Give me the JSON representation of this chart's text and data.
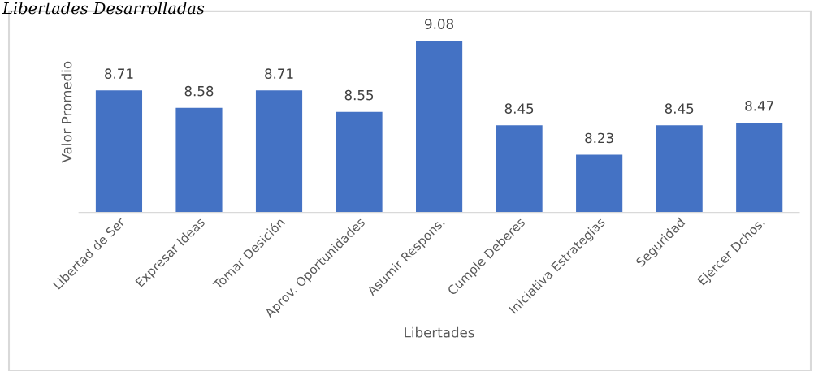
{
  "chart_data": {
    "type": "bar",
    "title": "Libertades Desarrolladas",
    "xlabel": "Libertades",
    "ylabel": "Valor Promedio",
    "categories": [
      "Libertad de Ser",
      "Expresar Ideas",
      "Tomar Desición",
      "Aprov. Oportunidades",
      "Asumir Respons.",
      "Cumple Deberes",
      "Iniciativa Estrategias",
      "Seguridad",
      "Ejercer Dchos."
    ],
    "values": [
      8.71,
      8.58,
      8.71,
      8.55,
      9.08,
      8.45,
      8.23,
      8.45,
      8.47
    ],
    "color": "#4472c4",
    "ylim": [
      7.8,
      9.3
    ],
    "tick_labels": "x",
    "data_labels": true
  }
}
